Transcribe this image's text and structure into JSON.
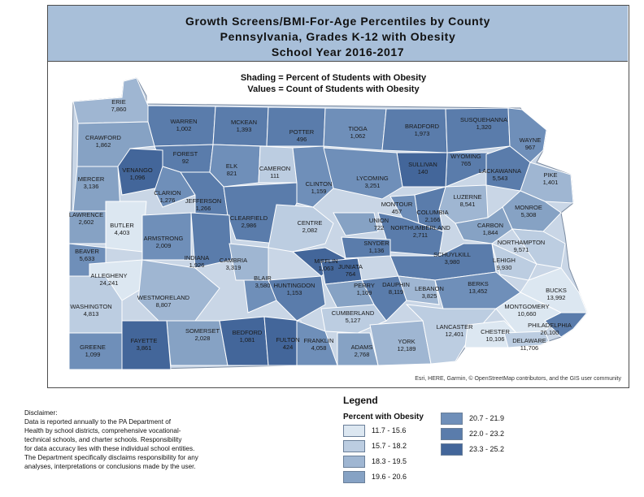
{
  "title": {
    "line1": "Growth Screens/BMI-For-Age Percentiles by County",
    "line2": "Pennsylvania, Grades K-12 with Obesity",
    "line3": "School Year 2016-2017"
  },
  "subtitle": {
    "shading": "Shading = Percent of Students with Obesity",
    "values": "Values = Count of Students with Obesity"
  },
  "attribution": "Esri, HERE, Garmin, © OpenStreetMap contributors, and the GIS user community",
  "disclaimer": "Disclaimer:\nData is reported annually to the PA Department of\nHealth by school districts, comprehensive vocational-\ntechnical schools, and charter schools.  Responsibility\nfor data accuracy lies with these individual school entities.\nThe Department specifically disclaims responsibility for any\nanalyses, interpretations or conclusions made by the user.",
  "legend": {
    "title": "Legend",
    "heading": "Percent with Obesity",
    "classes": [
      {
        "label": "11.7 - 15.6",
        "color": "#dce7f1"
      },
      {
        "label": "15.7 - 18.2",
        "color": "#bccde1"
      },
      {
        "label": "18.3 - 19.5",
        "color": "#9fb6d2"
      },
      {
        "label": "19.6 - 20.6",
        "color": "#86a2c4"
      },
      {
        "label": "20.7 - 21.9",
        "color": "#6f8fb9"
      },
      {
        "label": "22.0 - 23.2",
        "color": "#5a7cab"
      },
      {
        "label": "23.3 - 25.2",
        "color": "#43669a"
      }
    ]
  },
  "counties": [
    {
      "name": "ERIE",
      "value": "7,860",
      "class": 2
    },
    {
      "name": "WARREN",
      "value": "1,002",
      "class": 5
    },
    {
      "name": "MCKEAN",
      "value": "1,393",
      "class": 5
    },
    {
      "name": "POTTER",
      "value": "496",
      "class": 5
    },
    {
      "name": "TIOGA",
      "value": "1,062",
      "class": 4
    },
    {
      "name": "BRADFORD",
      "value": "1,973",
      "class": 5
    },
    {
      "name": "SUSQUEHANNA",
      "value": "1,320",
      "class": 5
    },
    {
      "name": "WAYNE",
      "value": "967",
      "class": 4
    },
    {
      "name": "CRAWFORD",
      "value": "1,862",
      "class": 3
    },
    {
      "name": "FOREST",
      "value": "92",
      "class": 5
    },
    {
      "name": "ELK",
      "value": "821",
      "class": 4
    },
    {
      "name": "CAMERON",
      "value": "111",
      "class": 1
    },
    {
      "name": "WYOMING",
      "value": "765",
      "class": 5
    },
    {
      "name": "SULLIVAN",
      "value": "140",
      "class": 6
    },
    {
      "name": "LACKAWANNA",
      "value": "5,543",
      "class": 5
    },
    {
      "name": "PIKE",
      "value": "1,401",
      "class": 2
    },
    {
      "name": "MERCER",
      "value": "3,136",
      "class": 3
    },
    {
      "name": "VENANGO",
      "value": "1,096",
      "class": 6
    },
    {
      "name": "CLINTON",
      "value": "1,159",
      "class": 4
    },
    {
      "name": "LYCOMING",
      "value": "3,251",
      "class": 4
    },
    {
      "name": "CLARION",
      "value": "1,276",
      "class": 4
    },
    {
      "name": "JEFFERSON",
      "value": "1,266",
      "class": 5
    },
    {
      "name": "LUZERNE",
      "value": "8,541",
      "class": 2
    },
    {
      "name": "MONROE",
      "value": "5,308",
      "class": 3
    },
    {
      "name": "MONTOUR",
      "value": "457",
      "class": 4
    },
    {
      "name": "COLUMBIA",
      "value": "2,166",
      "class": 5
    },
    {
      "name": "LAWRENCE",
      "value": "2,602",
      "class": 3
    },
    {
      "name": "BUTLER",
      "value": "4,403",
      "class": 0
    },
    {
      "name": "CLEARFIELD",
      "value": "2,986",
      "class": 5
    },
    {
      "name": "CENTRE",
      "value": "2,082",
      "class": 1
    },
    {
      "name": "UNION",
      "value": "722",
      "class": 3
    },
    {
      "name": "NORTHUMBERLAND",
      "value": "2,711",
      "class": 5
    },
    {
      "name": "CARBON",
      "value": "1,844",
      "class": 3
    },
    {
      "name": "ARMSTRONG",
      "value": "2,009",
      "class": 4
    },
    {
      "name": "SNYDER",
      "value": "1,136",
      "class": 5
    },
    {
      "name": "NORTHAMPTON",
      "value": "9,571",
      "class": 1
    },
    {
      "name": "BEAVER",
      "value": "5,633",
      "class": 4
    },
    {
      "name": "INDIANA",
      "value": "1,926",
      "class": 5
    },
    {
      "name": "CAMBRIA",
      "value": "3,319",
      "class": 2
    },
    {
      "name": "MIFFLIN",
      "value": "1,063",
      "class": 6
    },
    {
      "name": "JUNIATA",
      "value": "764",
      "class": 6
    },
    {
      "name": "SCHUYLKILL",
      "value": "3,980",
      "class": 5
    },
    {
      "name": "LEHIGH",
      "value": "9,930",
      "class": 1
    },
    {
      "name": "ALLEGHENY",
      "value": "24,241",
      "class": 0
    },
    {
      "name": "BLAIR",
      "value": "3,580",
      "class": 4
    },
    {
      "name": "HUNTINGDON",
      "value": "1,153",
      "class": 5
    },
    {
      "name": "PERRY",
      "value": "1,109",
      "class": 3
    },
    {
      "name": "DAUPHIN",
      "value": "8,119",
      "class": 5
    },
    {
      "name": "LEBANON",
      "value": "3,825",
      "class": 2
    },
    {
      "name": "BERKS",
      "value": "13,452",
      "class": 4
    },
    {
      "name": "BUCKS",
      "value": "13,992",
      "class": 0
    },
    {
      "name": "WESTMORELAND",
      "value": "8,807",
      "class": 2
    },
    {
      "name": "WASHINGTON",
      "value": "4,813",
      "class": 1
    },
    {
      "name": "MONTGOMERY",
      "value": "10,660",
      "class": 0
    },
    {
      "name": "CUMBERLAND",
      "value": "5,127",
      "class": 1
    },
    {
      "name": "PHILADELPHIA",
      "value": "26,100",
      "class": 5
    },
    {
      "name": "SOMERSET",
      "value": "2,028",
      "class": 3
    },
    {
      "name": "BEDFORD",
      "value": "1,081",
      "class": 6
    },
    {
      "name": "FULTON",
      "value": "424",
      "class": 6
    },
    {
      "name": "FRANKLIN",
      "value": "4,058",
      "class": 4
    },
    {
      "name": "ADAMS",
      "value": "2,768",
      "class": 3
    },
    {
      "name": "YORK",
      "value": "12,189",
      "class": 2
    },
    {
      "name": "LANCASTER",
      "value": "12,401",
      "class": 1
    },
    {
      "name": "CHESTER",
      "value": "10,106",
      "class": 0
    },
    {
      "name": "DELAWARE",
      "value": "11,706",
      "class": 1
    },
    {
      "name": "GREENE",
      "value": "1,099",
      "class": 4
    },
    {
      "name": "FAYETTE",
      "value": "3,861",
      "class": 6
    }
  ]
}
